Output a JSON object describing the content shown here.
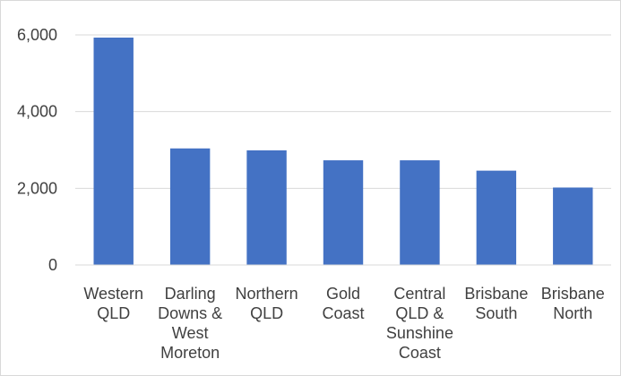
{
  "chart_data": {
    "type": "bar",
    "title": "",
    "xlabel": "",
    "ylabel": "",
    "categories": [
      [
        "Western",
        "QLD"
      ],
      [
        "Darling",
        "Downs &",
        "West",
        "Moreton"
      ],
      [
        "Northern",
        "QLD"
      ],
      [
        "Gold",
        "Coast"
      ],
      [
        "Central",
        "QLD &",
        "Sunshine",
        "Coast"
      ],
      [
        "Brisbane",
        "South"
      ],
      [
        "Brisbane",
        "North"
      ]
    ],
    "values": [
      5930,
      3040,
      2990,
      2730,
      2730,
      2460,
      2020
    ],
    "ylim": [
      0,
      6000
    ],
    "yticks": [
      0,
      2000,
      4000,
      6000
    ],
    "ytick_labels": [
      "0",
      "2,000",
      "4,000",
      "6,000"
    ],
    "grid": true,
    "legend": "none",
    "colors": {
      "bar": "#4472C4",
      "grid": "#d9d9d9",
      "axis": "#d9d9d9",
      "text": "#404040"
    }
  }
}
